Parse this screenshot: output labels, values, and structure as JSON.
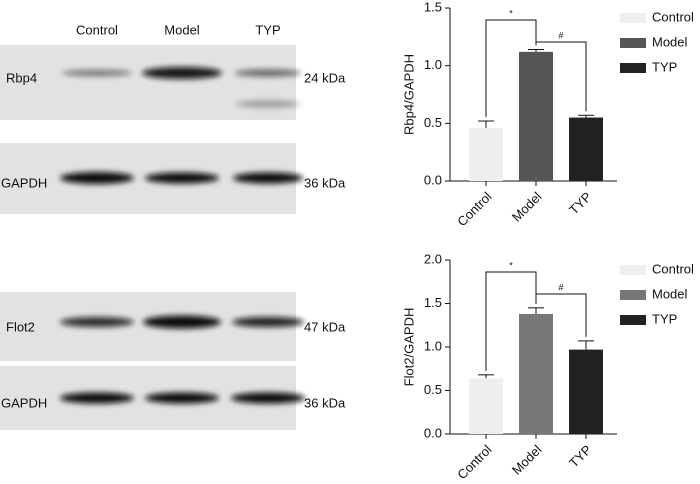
{
  "blots": {
    "lanes": [
      "Control",
      "Model",
      "TYP"
    ],
    "rows": [
      {
        "name": "Rbp4",
        "size": "24 kDa"
      },
      {
        "name": "GAPDH",
        "size": "36 kDa"
      },
      {
        "name": "Flot2",
        "size": "47 kDa"
      },
      {
        "name": "GAPDH",
        "size": "36 kDa"
      }
    ]
  },
  "chart_data": [
    {
      "type": "bar",
      "ylabel": "Rbp4/GAPDH",
      "categories": [
        "Control",
        "Model",
        "TYP"
      ],
      "values": [
        0.46,
        1.12,
        0.55
      ],
      "errors": [
        0.06,
        0.02,
        0.02
      ],
      "colors": [
        "#eeeeee",
        "#555555",
        "#222222"
      ],
      "ylim": [
        0,
        1.5
      ],
      "yticks": [
        {
          "value": 0,
          "label": "0.0"
        },
        0.5,
        {
          "value": 1,
          "label": "1.0"
        },
        1.5
      ],
      "legend": "right",
      "annotations": [
        {
          "text": "*",
          "from": 0,
          "to": 1
        },
        {
          "text": "#",
          "from": 1,
          "to": 2
        }
      ]
    },
    {
      "type": "bar",
      "ylabel": "Flot2/GAPDH",
      "categories": [
        "Control",
        "Model",
        "TYP"
      ],
      "values": [
        0.64,
        1.38,
        0.97
      ],
      "errors": [
        0.04,
        0.07,
        0.1
      ],
      "colors": [
        "#eeeeee",
        "#777777",
        "#222222"
      ],
      "ylim": [
        0,
        2
      ],
      "yticks": [
        {
          "value": 0,
          "label": "0.0"
        },
        0.5,
        {
          "value": 1,
          "label": "1.0"
        },
        1.5,
        {
          "value": 2,
          "label": "2.0"
        }
      ],
      "legend": "right",
      "annotations": [
        {
          "text": "*",
          "from": 0,
          "to": 1
        },
        {
          "text": "#",
          "from": 1,
          "to": 2
        }
      ]
    }
  ]
}
